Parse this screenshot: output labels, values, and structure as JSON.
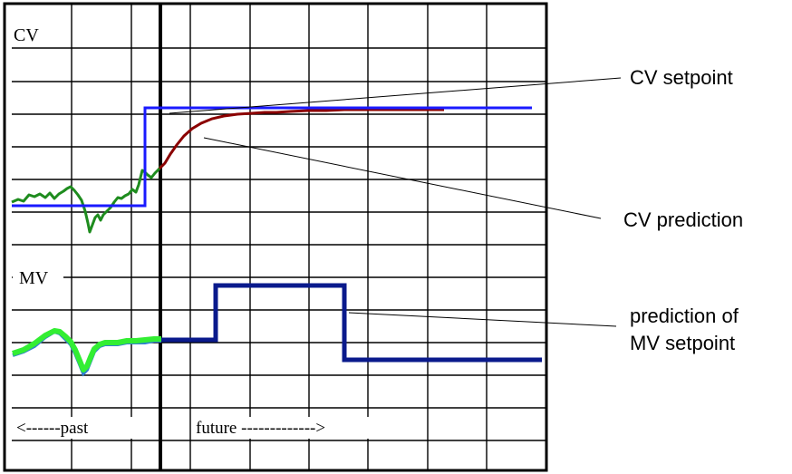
{
  "panels": {
    "cv_label": "CV",
    "mv_label": "MV"
  },
  "time_axis": {
    "past_label": "<------past",
    "future_label": "future ------------->"
  },
  "annotations": {
    "cv_setpoint": "CV setpoint",
    "cv_prediction": "CV prediction",
    "mv_setpoint_line1": "prediction of",
    "mv_setpoint_line2": "MV setpoint"
  },
  "colors": {
    "cv_setpoint": "#1a1aff",
    "cv_prediction": "#8b0000",
    "cv_history": "#1e8c1e",
    "mv_history": "#33ee33",
    "mv_history_shadow": "#2f7fd0",
    "mv_prediction": "#0a1a8c",
    "grid": "#000000"
  }
}
